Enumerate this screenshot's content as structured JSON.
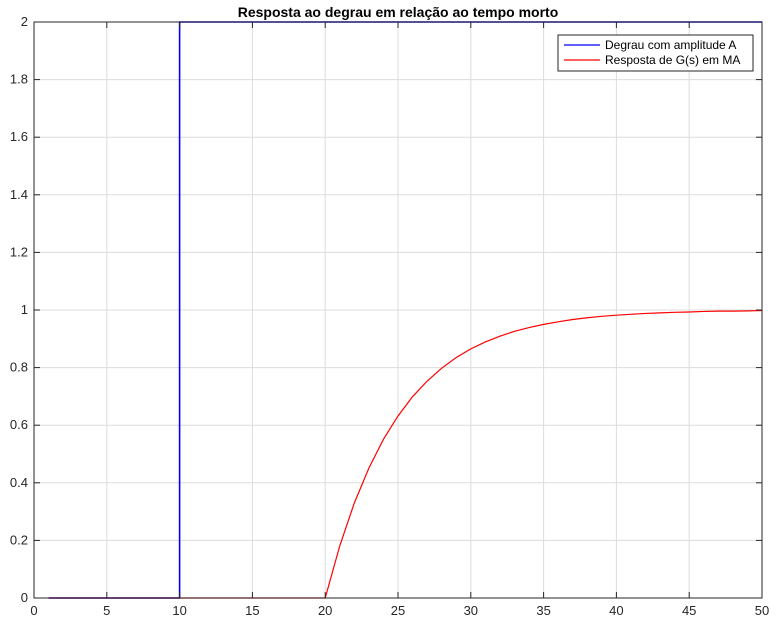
{
  "chart_data": {
    "type": "line",
    "title": "Resposta ao degrau em relação ao tempo morto",
    "xlabel": "",
    "ylabel": "",
    "xlim": [
      0,
      50
    ],
    "ylim": [
      0,
      2
    ],
    "xticks": [
      0,
      5,
      10,
      15,
      20,
      25,
      30,
      35,
      40,
      45,
      50
    ],
    "yticks": [
      0,
      0.2,
      0.4,
      0.6,
      0.8,
      1,
      1.2,
      1.4,
      1.6,
      1.8,
      2
    ],
    "grid": true,
    "legend_position": "top-right",
    "series": [
      {
        "name": "Degrau com amplitude A",
        "color": "#0000ff",
        "x": [
          1,
          10,
          10,
          50
        ],
        "y": [
          0,
          0,
          2,
          2
        ]
      },
      {
        "name": "Resposta de G(s) em MA",
        "color": "#ff0000",
        "x": [
          1,
          20,
          21,
          22,
          23,
          24,
          25,
          26,
          27,
          28,
          29,
          30,
          31,
          32,
          33,
          34,
          35,
          36,
          37,
          38,
          39,
          40,
          41,
          42,
          43,
          44,
          45,
          46,
          47,
          48,
          49,
          50
        ],
        "y": [
          0,
          0,
          0.181,
          0.33,
          0.451,
          0.551,
          0.632,
          0.699,
          0.753,
          0.798,
          0.835,
          0.865,
          0.889,
          0.909,
          0.926,
          0.939,
          0.95,
          0.959,
          0.967,
          0.973,
          0.978,
          0.982,
          0.985,
          0.988,
          0.99,
          0.992,
          0.993,
          0.995,
          0.996,
          0.996,
          0.997,
          0.998
        ]
      }
    ]
  }
}
